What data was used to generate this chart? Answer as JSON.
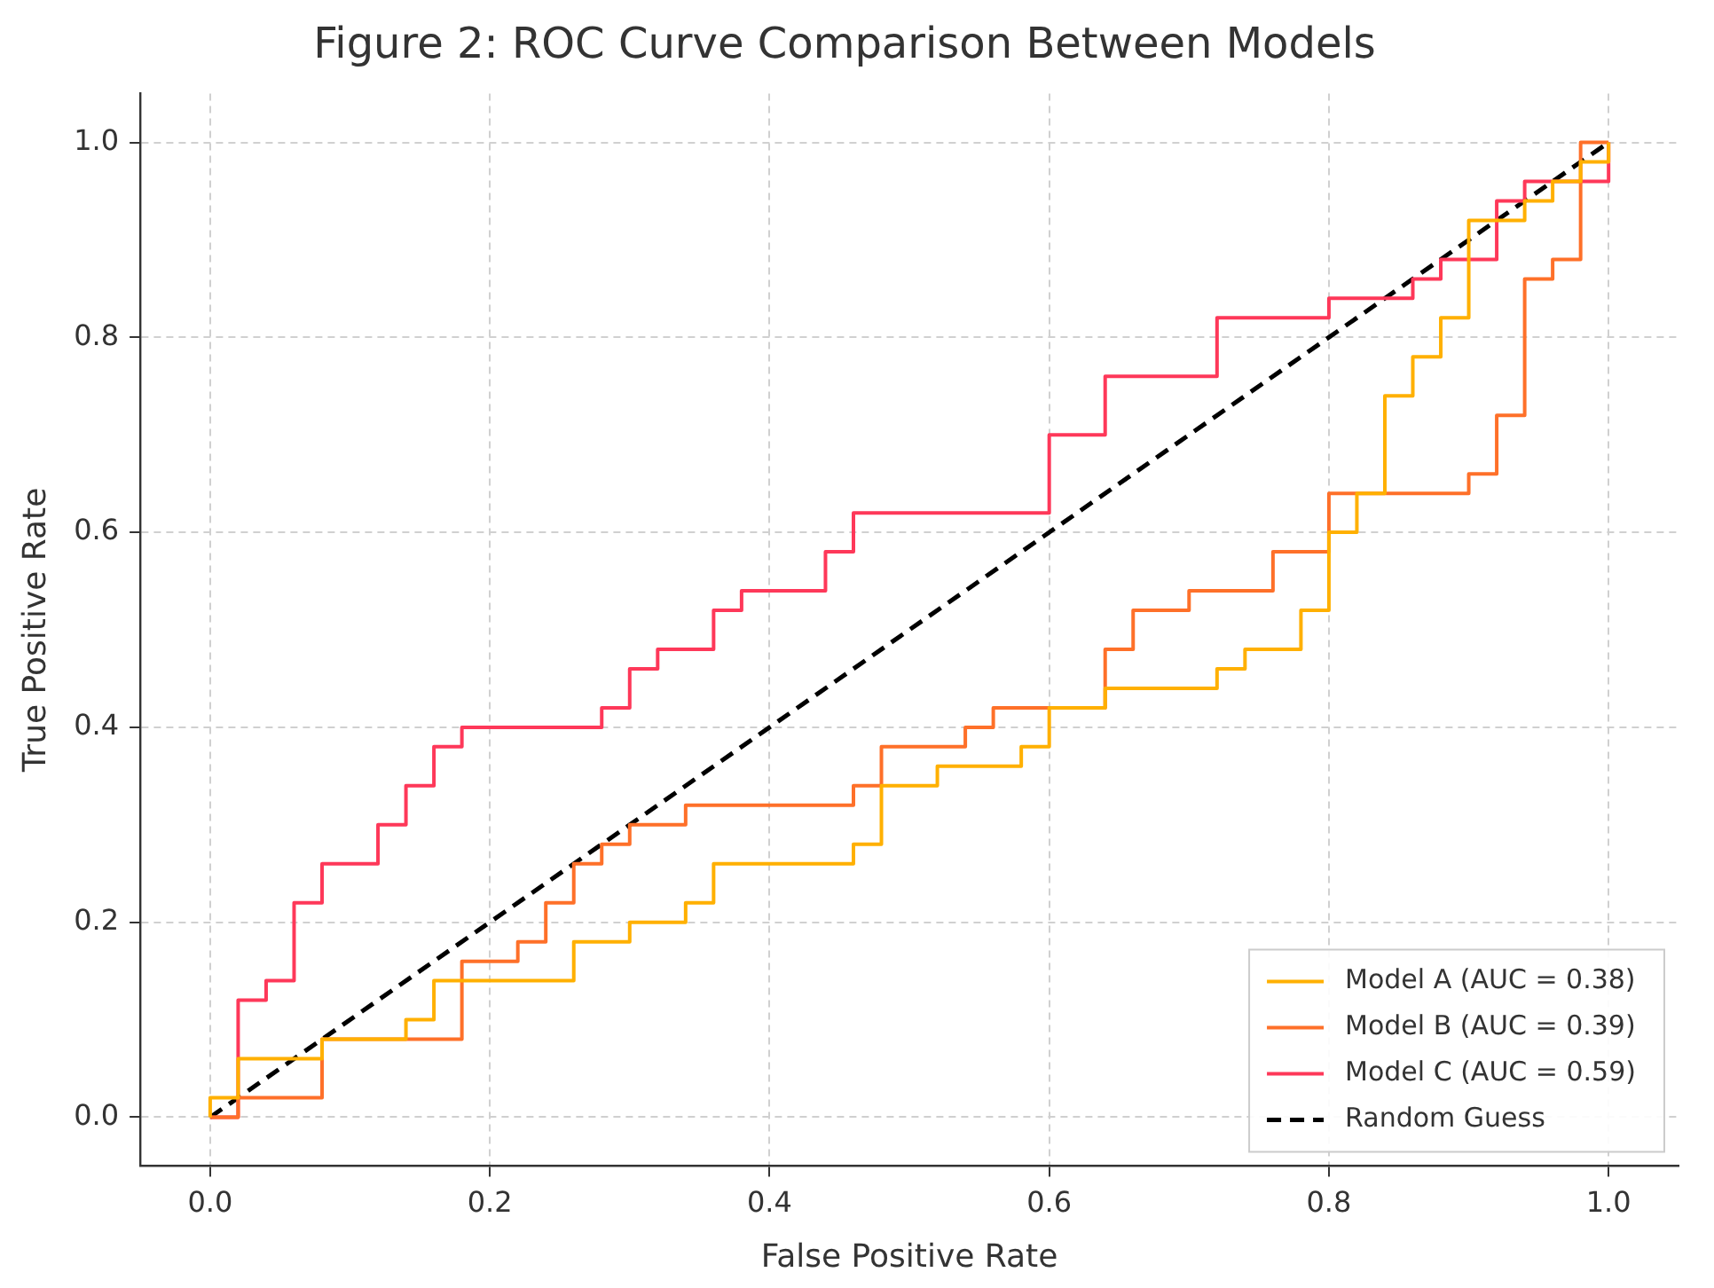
{
  "chart_data": {
    "type": "line",
    "title": "Figure 2: ROC Curve Comparison Between Models",
    "xlabel": "False Positive Rate",
    "ylabel": "True Positive Rate",
    "xlim": [
      -0.05,
      1.05
    ],
    "ylim": [
      -0.05,
      1.05
    ],
    "xticks": [
      {
        "value": 0,
        "label": "0.0"
      },
      {
        "value": 0.2,
        "label": "0.2"
      },
      {
        "value": 0.4,
        "label": "0.4"
      },
      {
        "value": 0.6,
        "label": "0.6"
      },
      {
        "value": 0.8,
        "label": "0.8"
      },
      {
        "value": 1,
        "label": "1.0"
      }
    ],
    "yticks": [
      {
        "value": 0,
        "label": "0.0"
      },
      {
        "value": 0.2,
        "label": "0.2"
      },
      {
        "value": 0.4,
        "label": "0.4"
      },
      {
        "value": 0.6,
        "label": "0.6"
      },
      {
        "value": 0.8,
        "label": "0.8"
      },
      {
        "value": 1,
        "label": "1.0"
      }
    ],
    "grid": true,
    "legend": "bottom right",
    "marker": "none",
    "series": [
      {
        "name": "Model A (AUC = 0.38)",
        "color": "#ffb000",
        "line_style": "solid",
        "x": [
          0,
          0,
          0.02,
          0.02,
          0.08,
          0.08,
          0.14,
          0.14,
          0.16,
          0.16,
          0.26,
          0.26,
          0.3,
          0.3,
          0.34,
          0.34,
          0.36,
          0.36,
          0.46,
          0.46,
          0.48,
          0.48,
          0.52,
          0.52,
          0.58,
          0.58,
          0.6,
          0.6,
          0.64,
          0.64,
          0.72,
          0.72,
          0.74,
          0.74,
          0.78,
          0.78,
          0.8,
          0.8,
          0.82,
          0.82,
          0.84,
          0.84,
          0.86,
          0.86,
          0.88,
          0.88,
          0.9,
          0.9,
          0.94,
          0.94,
          0.96,
          0.96,
          0.98,
          0.98,
          1,
          1
        ],
        "values": [
          0,
          0.02,
          0.02,
          0.06,
          0.06,
          0.08,
          0.08,
          0.1,
          0.1,
          0.14,
          0.14,
          0.18,
          0.18,
          0.2,
          0.2,
          0.22,
          0.22,
          0.26,
          0.26,
          0.28,
          0.28,
          0.34,
          0.34,
          0.36,
          0.36,
          0.38,
          0.38,
          0.42,
          0.42,
          0.44,
          0.44,
          0.46,
          0.46,
          0.48,
          0.48,
          0.52,
          0.52,
          0.6,
          0.6,
          0.64,
          0.64,
          0.74,
          0.74,
          0.78,
          0.78,
          0.82,
          0.82,
          0.92,
          0.92,
          0.94,
          0.94,
          0.96,
          0.96,
          0.98,
          0.98,
          1
        ]
      },
      {
        "name": "Model B (AUC = 0.39)",
        "color": "#fe7029",
        "line_style": "solid",
        "x": [
          0,
          0.02,
          0.02,
          0.08,
          0.08,
          0.18,
          0.18,
          0.22,
          0.22,
          0.24,
          0.24,
          0.26,
          0.26,
          0.28,
          0.28,
          0.3,
          0.3,
          0.34,
          0.34,
          0.46,
          0.46,
          0.48,
          0.48,
          0.54,
          0.54,
          0.56,
          0.56,
          0.64,
          0.64,
          0.66,
          0.66,
          0.7,
          0.7,
          0.76,
          0.76,
          0.8,
          0.8,
          0.9,
          0.9,
          0.92,
          0.92,
          0.94,
          0.94,
          0.96,
          0.96,
          0.98,
          0.98,
          1
        ],
        "values": [
          0,
          0,
          0.02,
          0.02,
          0.08,
          0.08,
          0.16,
          0.16,
          0.18,
          0.18,
          0.22,
          0.22,
          0.26,
          0.26,
          0.28,
          0.28,
          0.3,
          0.3,
          0.32,
          0.32,
          0.34,
          0.34,
          0.38,
          0.38,
          0.4,
          0.4,
          0.42,
          0.42,
          0.48,
          0.48,
          0.52,
          0.52,
          0.54,
          0.54,
          0.58,
          0.58,
          0.64,
          0.64,
          0.66,
          0.66,
          0.72,
          0.72,
          0.86,
          0.86,
          0.88,
          0.88,
          1,
          1
        ]
      },
      {
        "name": "Model C (AUC = 0.59)",
        "color": "#fe3859",
        "line_style": "solid",
        "x": [
          0,
          0.02,
          0.02,
          0.04,
          0.04,
          0.06,
          0.06,
          0.08,
          0.08,
          0.12,
          0.12,
          0.14,
          0.14,
          0.16,
          0.16,
          0.18,
          0.18,
          0.28,
          0.28,
          0.3,
          0.3,
          0.32,
          0.32,
          0.36,
          0.36,
          0.38,
          0.38,
          0.44,
          0.44,
          0.46,
          0.46,
          0.6,
          0.6,
          0.64,
          0.64,
          0.72,
          0.72,
          0.8,
          0.8,
          0.86,
          0.86,
          0.88,
          0.88,
          0.92,
          0.92,
          0.94,
          0.94,
          1,
          1
        ],
        "values": [
          0,
          0,
          0.12,
          0.12,
          0.14,
          0.14,
          0.22,
          0.22,
          0.26,
          0.26,
          0.3,
          0.3,
          0.34,
          0.34,
          0.38,
          0.38,
          0.4,
          0.4,
          0.42,
          0.42,
          0.46,
          0.46,
          0.48,
          0.48,
          0.52,
          0.52,
          0.54,
          0.54,
          0.58,
          0.58,
          0.62,
          0.62,
          0.7,
          0.7,
          0.76,
          0.76,
          0.82,
          0.82,
          0.84,
          0.84,
          0.86,
          0.86,
          0.88,
          0.88,
          0.94,
          0.94,
          0.96,
          0.96,
          1
        ]
      },
      {
        "name": "Random Guess",
        "color": "#000000",
        "line_style": "dashed",
        "x": [
          0,
          1
        ],
        "values": [
          0,
          1
        ]
      }
    ]
  }
}
